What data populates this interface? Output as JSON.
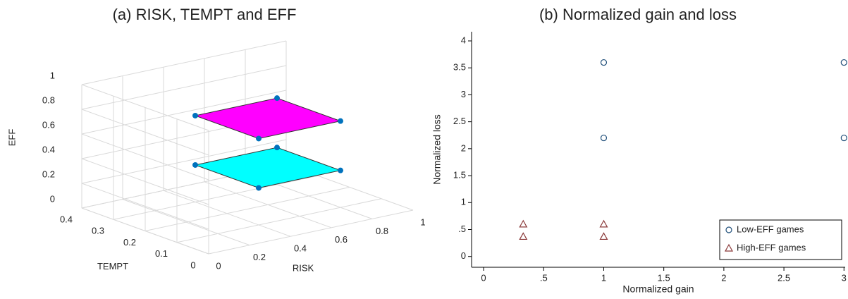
{
  "chart_data": [
    {
      "type": "plane3d",
      "title": "(a) RISK, TEMPT and EFF",
      "xlabel": "RISK",
      "ylabel": "TEMPT",
      "zlabel": "EFF",
      "xlim": [
        0,
        1
      ],
      "ylim": [
        0,
        0.4
      ],
      "zlim": [
        0,
        1
      ],
      "xticks": [
        0,
        0.2,
        0.4,
        0.6,
        0.8,
        1
      ],
      "yticks": [
        0,
        0.1,
        0.2,
        0.3,
        0.4
      ],
      "zticks": [
        0,
        0.2,
        0.4,
        0.6,
        0.8,
        1
      ],
      "grid": true,
      "marker_color": "#0072bd",
      "series": [
        {
          "color": "#00ffff",
          "x": [
            0.4,
            0.8,
            0.8,
            0.4
          ],
          "y": [
            0.1,
            0.1,
            0.3,
            0.3
          ],
          "z": [
            0.3,
            0.3,
            0.3,
            0.3
          ]
        },
        {
          "color": "#ff00ff",
          "x": [
            0.4,
            0.8,
            0.8,
            0.4
          ],
          "y": [
            0.1,
            0.1,
            0.3,
            0.3
          ],
          "z": [
            0.7,
            0.7,
            0.7,
            0.7
          ]
        }
      ]
    },
    {
      "type": "scatter",
      "title": "(b) Normalized gain and loss",
      "xlabel": "Normalized gain",
      "ylabel": "Normalized loss",
      "xlim": [
        -0.1,
        3.01
      ],
      "ylim": [
        -0.2,
        4.17
      ],
      "xticks": [
        0,
        {
          "value": 0.5,
          "label": ".5"
        },
        1,
        1.5,
        2,
        2.5,
        3
      ],
      "yticks": [
        0,
        {
          "value": 0.5,
          "label": ".5"
        },
        1,
        1.5,
        2,
        2.5,
        3,
        3.5,
        4
      ],
      "grid": false,
      "legend": "lower right",
      "series": [
        {
          "name": "Low-EFF games",
          "marker": "circle",
          "color": "#1f4e79",
          "x": [
            1,
            1,
            3,
            3
          ],
          "values": [
            3.6,
            2.2,
            3.6,
            2.2
          ]
        },
        {
          "name": "High-EFF games",
          "marker": "triangle",
          "color": "#8b3a3a",
          "x": [
            0.33,
            0.33,
            1,
            1
          ],
          "values": [
            0.6,
            0.37,
            0.6,
            0.37
          ]
        }
      ]
    }
  ]
}
